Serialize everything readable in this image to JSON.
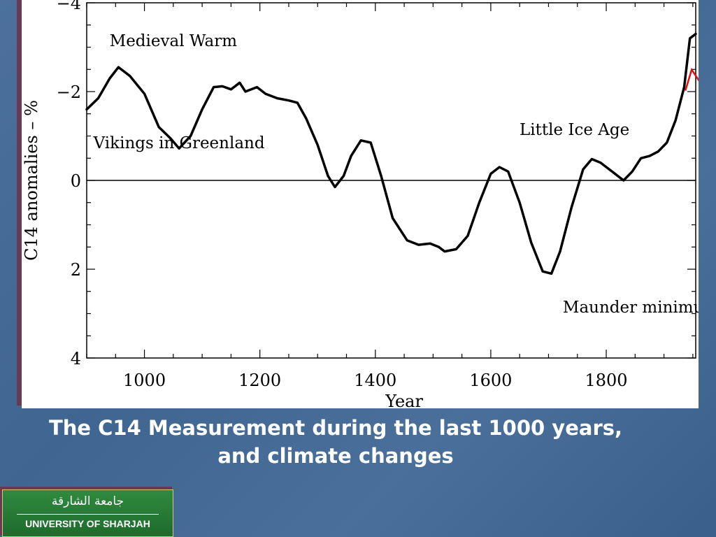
{
  "chart_data": {
    "type": "line",
    "xlabel": "Year",
    "ylabel": "C14 anomalies – %",
    "xlim": [
      900,
      1955
    ],
    "ylim": [
      -4,
      4
    ],
    "y_inverted": true,
    "x_ticks": [
      1000,
      1200,
      1400,
      1600,
      1800
    ],
    "y_ticks": [
      {
        "value": -4,
        "label": "−4"
      },
      {
        "value": -2,
        "label": "−2"
      },
      {
        "value": 0,
        "label": "0"
      },
      {
        "value": 2,
        "label": "2"
      },
      {
        "value": 4,
        "label": "4"
      }
    ],
    "zero_line": true,
    "annotations": [
      {
        "text": "Medieval Warm",
        "x": 1050,
        "y": -3.15
      },
      {
        "text": "Little Ice Age",
        "x": 1745,
        "y": -1.15
      },
      {
        "text": "Vikings in Greenland",
        "x": 1060,
        "y": -0.85
      },
      {
        "text": "Maunder minimum",
        "x": 1860,
        "y": 2.85
      }
    ],
    "series": [
      {
        "x": [
          900,
          920,
          940,
          955,
          975,
          1000,
          1025,
          1045,
          1060,
          1080,
          1100,
          1120,
          1135,
          1150,
          1165,
          1175,
          1195,
          1210,
          1230,
          1250,
          1265,
          1280,
          1300,
          1318,
          1330,
          1345,
          1358,
          1375,
          1392,
          1410,
          1430,
          1455,
          1475,
          1495,
          1510,
          1520,
          1540,
          1560,
          1580,
          1600,
          1615,
          1630,
          1650,
          1670,
          1690,
          1705,
          1720,
          1740,
          1760,
          1775,
          1790,
          1810,
          1830,
          1845,
          1860,
          1875,
          1890,
          1905,
          1920,
          1935,
          1945,
          1955
        ],
        "values": [
          -1.6,
          -1.85,
          -2.3,
          -2.55,
          -2.35,
          -1.95,
          -1.2,
          -0.95,
          -0.72,
          -1.0,
          -1.6,
          -2.1,
          -2.12,
          -2.05,
          -2.2,
          -2.0,
          -2.1,
          -1.95,
          -1.85,
          -1.8,
          -1.75,
          -1.4,
          -0.8,
          -0.1,
          0.15,
          -0.1,
          -0.55,
          -0.9,
          -0.85,
          -0.1,
          0.85,
          1.35,
          1.45,
          1.42,
          1.5,
          1.6,
          1.55,
          1.25,
          0.5,
          -0.15,
          -0.3,
          -0.2,
          0.5,
          1.4,
          2.05,
          2.1,
          1.6,
          0.6,
          -0.25,
          -0.48,
          -0.4,
          -0.2,
          0.0,
          -0.2,
          -0.5,
          -0.55,
          -0.65,
          -0.85,
          -1.35,
          -2.1,
          -3.2,
          -3.3
        ]
      }
    ],
    "grid": false,
    "marker": {
      "text": "^",
      "color": "#e01010",
      "x": 1948,
      "y": -2.4
    }
  },
  "caption": {
    "line1": "The C14 Measurement during the last 1000 years,",
    "line2": "and climate changes"
  },
  "logo": {
    "arabic": "جامعة الشارقة",
    "english": "UNIVERSITY OF SHARJAH",
    "color": "#2f8a3e"
  }
}
